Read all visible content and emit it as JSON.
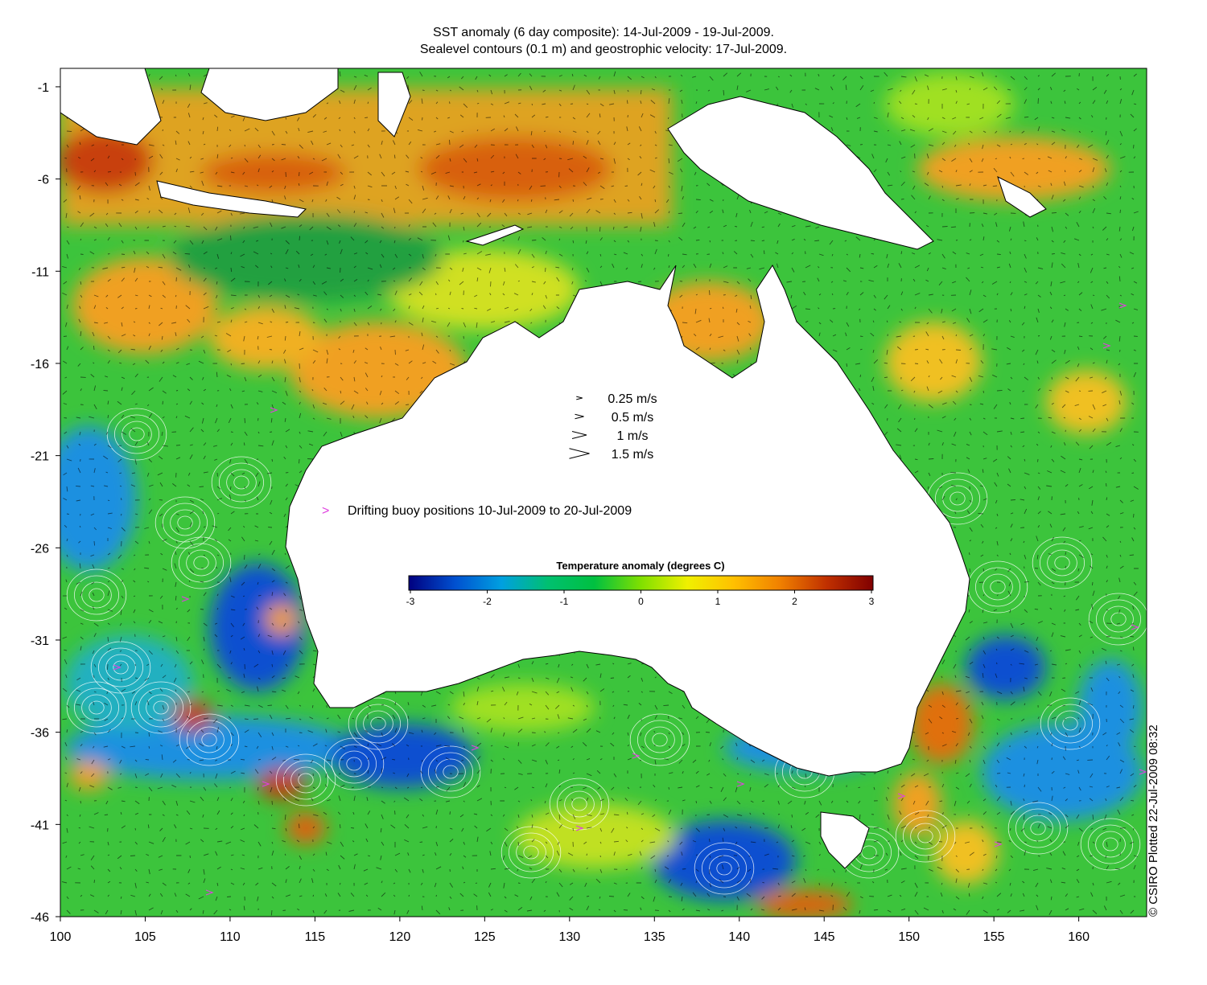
{
  "title": {
    "line1": "SST anomaly (6 day composite): 14-Jul-2009 - 19-Jul-2009.",
    "line2": "Sealevel contours (0.1 m) and geostrophic velocity: 17-Jul-2009."
  },
  "axes": {
    "x_ticks": [
      100,
      105,
      110,
      115,
      120,
      125,
      130,
      135,
      140,
      145,
      150,
      155,
      160
    ],
    "y_ticks": [
      -1,
      -6,
      -11,
      -16,
      -21,
      -26,
      -31,
      -36,
      -41,
      -46
    ],
    "x_range": [
      100,
      164
    ],
    "y_range": [
      -46,
      0
    ]
  },
  "velocity_legend": [
    {
      "label": "0.25 m/s",
      "speed": 0.25
    },
    {
      "label": "0.5 m/s",
      "speed": 0.5
    },
    {
      "label": "1 m/s",
      "speed": 1
    },
    {
      "label": "1.5 m/s",
      "speed": 1.5
    }
  ],
  "buoy_legend": {
    "symbol": ">",
    "label": "Drifting buoy positions 10-Jul-2009 to 20-Jul-2009",
    "color": "#e040e0"
  },
  "colorbar": {
    "title": "Temperature anomaly (degrees C)",
    "ticks": [
      -3,
      -2,
      -1,
      0,
      1,
      2,
      3
    ],
    "range": [
      -3,
      3
    ],
    "colors": [
      "#000080",
      "#0050d0",
      "#00a0e0",
      "#00c070",
      "#00c040",
      "#80e000",
      "#f0f000",
      "#ffc000",
      "#f08000",
      "#c03000",
      "#800000"
    ]
  },
  "credit": "© CSIRO Plotted 22-Jul-2009 08:32",
  "colors": {
    "ocean_base": "#3cc43c",
    "land": "#ffffff",
    "warm": "#f0a020",
    "cool": "#1e90e0"
  }
}
